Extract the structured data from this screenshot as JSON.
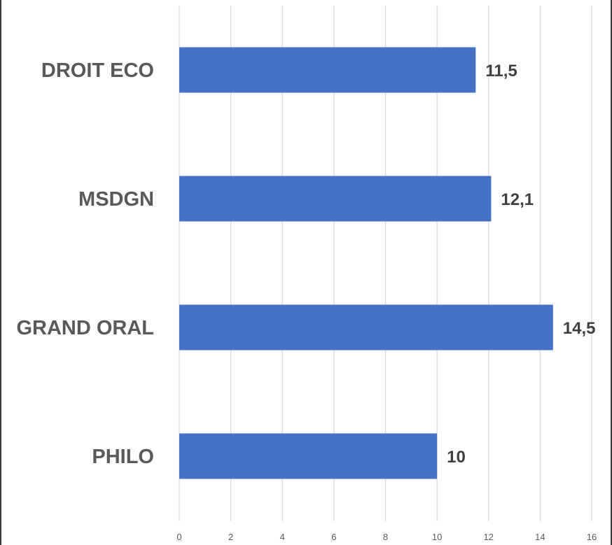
{
  "chart_data": {
    "type": "bar",
    "orientation": "horizontal",
    "categories": [
      "DROIT ECO",
      "MSDGN",
      "GRAND ORAL",
      "PHILO"
    ],
    "values": [
      11.5,
      12.1,
      14.5,
      10
    ],
    "value_labels": [
      "11,5",
      "12,1",
      "14,5",
      "10"
    ],
    "xlim": [
      0,
      16
    ],
    "x_ticks": [
      0,
      2,
      4,
      6,
      8,
      10,
      12,
      14,
      16
    ],
    "title": "",
    "xlabel": "",
    "ylabel": "",
    "grid": "vertical",
    "legend": "none",
    "bar_color": "#4472c4"
  }
}
